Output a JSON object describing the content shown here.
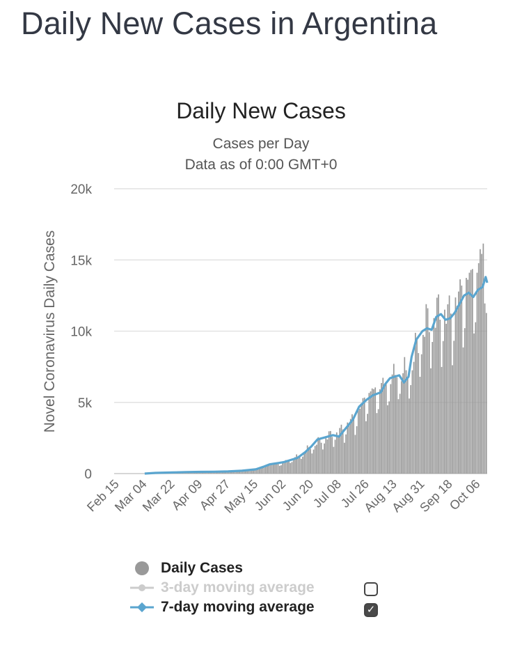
{
  "page": {
    "title": "Daily New Cases in Argentina"
  },
  "chart_data": {
    "type": "bar",
    "title": "Daily New Cases",
    "subtitle_1": "Cases per Day",
    "subtitle_2": "Data as of 0:00 GMT+0",
    "ylabel": "Novel Coronavirus Daily Cases",
    "xlabel": "",
    "ylim": [
      0,
      20000
    ],
    "y_ticks": [
      {
        "value": 0,
        "label": "0"
      },
      {
        "value": 5000,
        "label": "5k"
      },
      {
        "value": 10000,
        "label": "10k"
      },
      {
        "value": 15000,
        "label": "15k"
      },
      {
        "value": 20000,
        "label": "20k"
      }
    ],
    "x_tick_labels": [
      "Feb 15",
      "Mar 04",
      "Mar 22",
      "Apr 09",
      "Apr 27",
      "May 15",
      "Jun 02",
      "Jun 20",
      "Jul 08",
      "Jul 26",
      "Aug 13",
      "Aug 31",
      "Sep 18",
      "Oct 06"
    ],
    "x_tick_day_index": [
      0,
      18,
      36,
      54,
      72,
      90,
      108,
      126,
      144,
      162,
      180,
      198,
      216,
      234
    ],
    "start_date": "Feb 15",
    "num_days": 240,
    "series": [
      {
        "name": "Daily Cases",
        "color": "#999999",
        "anchors": [
          [
            0,
            0
          ],
          [
            18,
            0
          ],
          [
            22,
            10
          ],
          [
            30,
            60
          ],
          [
            36,
            80
          ],
          [
            45,
            110
          ],
          [
            54,
            120
          ],
          [
            63,
            130
          ],
          [
            72,
            150
          ],
          [
            81,
            200
          ],
          [
            90,
            300
          ],
          [
            99,
            600
          ],
          [
            108,
            800
          ],
          [
            117,
            1200
          ],
          [
            126,
            1900
          ],
          [
            135,
            2500
          ],
          [
            144,
            2900
          ],
          [
            153,
            3800
          ],
          [
            162,
            5400
          ],
          [
            171,
            6000
          ],
          [
            180,
            6800
          ],
          [
            189,
            7000
          ],
          [
            198,
            10000
          ],
          [
            207,
            11000
          ],
          [
            216,
            11000
          ],
          [
            225,
            13000
          ],
          [
            234,
            14000
          ],
          [
            238,
            16000
          ],
          [
            240,
            13000
          ]
        ]
      },
      {
        "name": "3-day moving average",
        "color": "#cccccc",
        "visible": false
      },
      {
        "name": "7-day moving average",
        "color": "#5aa5cf",
        "values": [
          [
            18,
            0
          ],
          [
            25,
            50
          ],
          [
            36,
            80
          ],
          [
            45,
            110
          ],
          [
            54,
            120
          ],
          [
            63,
            130
          ],
          [
            72,
            150
          ],
          [
            81,
            200
          ],
          [
            90,
            300
          ],
          [
            95,
            480
          ],
          [
            99,
            650
          ],
          [
            105,
            750
          ],
          [
            108,
            800
          ],
          [
            117,
            1100
          ],
          [
            122,
            1500
          ],
          [
            126,
            1900
          ],
          [
            130,
            2400
          ],
          [
            135,
            2550
          ],
          [
            140,
            2700
          ],
          [
            144,
            2600
          ],
          [
            147,
            3000
          ],
          [
            150,
            3400
          ],
          [
            153,
            3800
          ],
          [
            157,
            4700
          ],
          [
            162,
            5200
          ],
          [
            166,
            5500
          ],
          [
            171,
            5700
          ],
          [
            174,
            6300
          ],
          [
            177,
            6700
          ],
          [
            180,
            6800
          ],
          [
            183,
            6900
          ],
          [
            186,
            6400
          ],
          [
            189,
            6800
          ],
          [
            191,
            8200
          ],
          [
            194,
            9400
          ],
          [
            198,
            10000
          ],
          [
            201,
            10200
          ],
          [
            204,
            10100
          ],
          [
            207,
            11000
          ],
          [
            210,
            11200
          ],
          [
            213,
            10800
          ],
          [
            216,
            10900
          ],
          [
            219,
            11300
          ],
          [
            222,
            11900
          ],
          [
            225,
            12500
          ],
          [
            228,
            12700
          ],
          [
            231,
            12400
          ],
          [
            234,
            12900
          ],
          [
            237,
            13100
          ],
          [
            239,
            13800
          ],
          [
            240,
            13400
          ]
        ]
      }
    ],
    "legend": [
      {
        "label": "Daily Cases",
        "enabled": true
      },
      {
        "label": "3-day moving average",
        "enabled": false
      },
      {
        "label": "7-day moving average",
        "enabled": true
      }
    ]
  }
}
